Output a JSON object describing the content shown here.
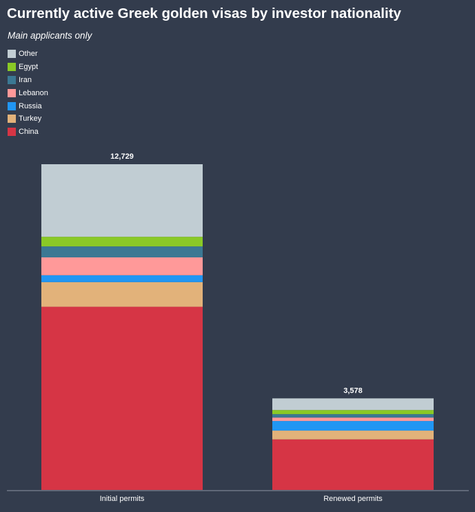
{
  "chart_data": {
    "type": "bar",
    "stacked": true,
    "title": "Currently active Greek golden visas by investor nationality",
    "subtitle": "Main applicants only",
    "categories": [
      "Initial permits",
      "Renewed permits"
    ],
    "totals": [
      "12,729",
      "3,578"
    ],
    "total_values": [
      12729,
      3578
    ],
    "legend_placement": "top-left",
    "grid": false,
    "series": [
      {
        "name": "China",
        "color": "#d63545",
        "values": [
          7158,
          1975
        ]
      },
      {
        "name": "Turkey",
        "color": "#e2b27a",
        "values": [
          965,
          343
        ]
      },
      {
        "name": "Russia",
        "color": "#2196f3",
        "values": [
          268,
          376
        ]
      },
      {
        "name": "Lebanon",
        "color": "#ff9999",
        "values": [
          697,
          134
        ]
      },
      {
        "name": "Iran",
        "color": "#3b7893",
        "values": [
          429,
          134
        ]
      },
      {
        "name": "Egypt",
        "color": "#8ac926",
        "values": [
          376,
          161
        ]
      },
      {
        "name": "Other",
        "color": "#c1cdd3",
        "values": [
          2836,
          455
        ]
      }
    ]
  }
}
